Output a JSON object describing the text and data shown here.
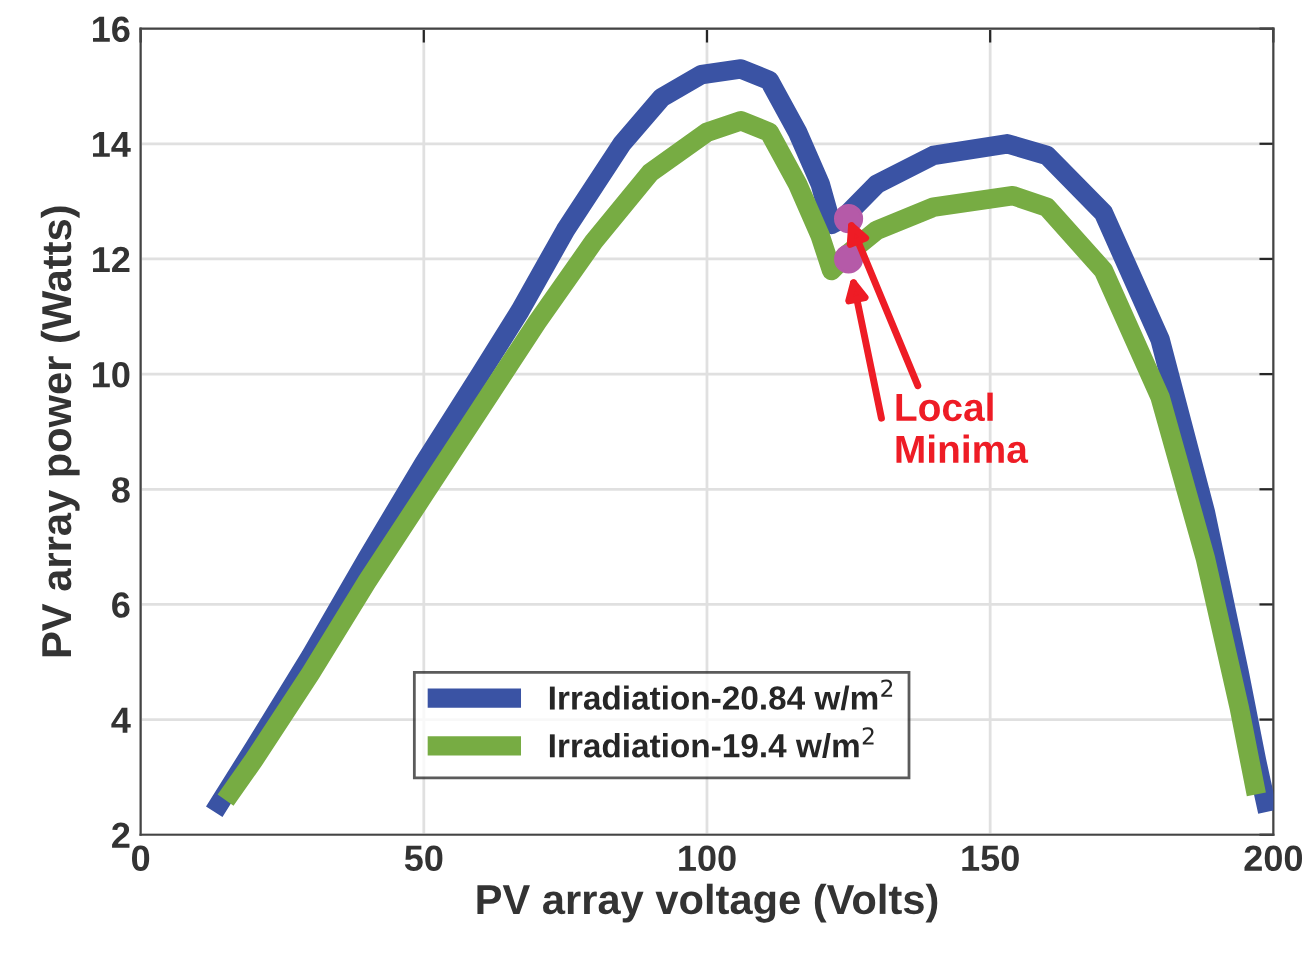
{
  "chart_data": {
    "type": "line",
    "xlabel": "PV array voltage (Volts)",
    "ylabel": "PV array power (Watts)",
    "xlim": [
      0,
      200
    ],
    "xticks": [
      0,
      50,
      100,
      150,
      200
    ],
    "ylim": [
      2,
      16
    ],
    "yticks": [
      2,
      4,
      6,
      8,
      10,
      12,
      14,
      16
    ],
    "grid": true,
    "legend": "bottom",
    "marker": "none",
    "line_style": "solid",
    "series": [
      {
        "name": "Irradiation-20.84 w/m$^{2}$",
        "color": "#3a53a4",
        "x": [
          13,
          20,
          30,
          40,
          50,
          60,
          67,
          75,
          85,
          92,
          99,
          106,
          111,
          116,
          120,
          122,
          124,
          130,
          140,
          153,
          160,
          170,
          180,
          188,
          194,
          197,
          199
        ],
        "values": [
          2.4,
          3.5,
          5.1,
          6.8,
          8.45,
          10.0,
          11.1,
          12.5,
          14.0,
          14.8,
          15.2,
          15.3,
          15.1,
          14.2,
          13.3,
          12.6,
          12.7,
          13.3,
          13.8,
          14.0,
          13.8,
          12.8,
          10.6,
          7.6,
          4.8,
          3.3,
          2.4
        ]
      },
      {
        "name": "Irradiation-19.4 w/m$^{2}$",
        "color": "#77ac43",
        "x": [
          15,
          20,
          30,
          40,
          50,
          60,
          70,
          80,
          90,
          100,
          106,
          111,
          116,
          120,
          122,
          125,
          130,
          140,
          154,
          160,
          170,
          180,
          188,
          194,
          197
        ],
        "values": [
          2.6,
          3.3,
          4.8,
          6.4,
          7.9,
          9.4,
          10.9,
          12.3,
          13.5,
          14.2,
          14.4,
          14.2,
          13.3,
          12.4,
          11.8,
          12.1,
          12.5,
          12.9,
          13.1,
          12.9,
          11.8,
          9.6,
          6.8,
          4.2,
          2.7
        ]
      },
      {
        "type": "scatter",
        "marker": "circle",
        "color": "#b55aa8",
        "x": [
          125,
          125
        ],
        "values": [
          12.7,
          12.0
        ]
      }
    ],
    "annotations": [
      {
        "text": "Local\nMinima",
        "x": 125,
        "y": 12.7
      }
    ]
  }
}
